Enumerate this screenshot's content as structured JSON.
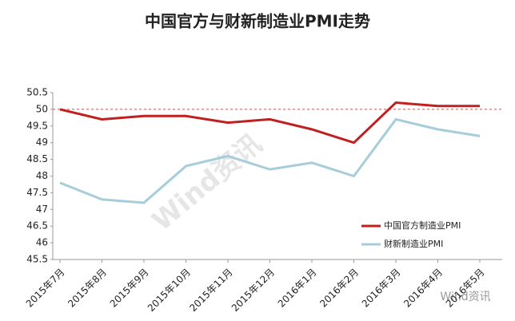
{
  "chart_data": {
    "type": "line",
    "title": "中国官方与财新制造业PMI走势",
    "categories": [
      "2015年7月",
      "2015年8月",
      "2015年9月",
      "2015年10月",
      "2015年11月",
      "2015年12月",
      "2016年1月",
      "2016年2月",
      "2016年3月",
      "2016年4月",
      "2016年5月"
    ],
    "series": [
      {
        "name": "中国官方制造业PMI",
        "color": "#c0201f",
        "values": [
          50.0,
          49.7,
          49.8,
          49.8,
          49.6,
          49.7,
          49.4,
          49.0,
          50.2,
          50.1,
          50.1
        ]
      },
      {
        "name": "财新制造业PMI",
        "color": "#a6cdd9",
        "values": [
          47.8,
          47.3,
          47.2,
          48.3,
          48.6,
          48.2,
          48.4,
          48.0,
          49.7,
          49.4,
          49.2
        ]
      }
    ],
    "ylim": [
      45.5,
      50.5
    ],
    "yticks": [
      45.5,
      46,
      46.5,
      47,
      47.5,
      48,
      48.5,
      49,
      49.5,
      50,
      50.5
    ],
    "reference_line": 50,
    "watermark": "Wind资讯",
    "legend": "right"
  }
}
